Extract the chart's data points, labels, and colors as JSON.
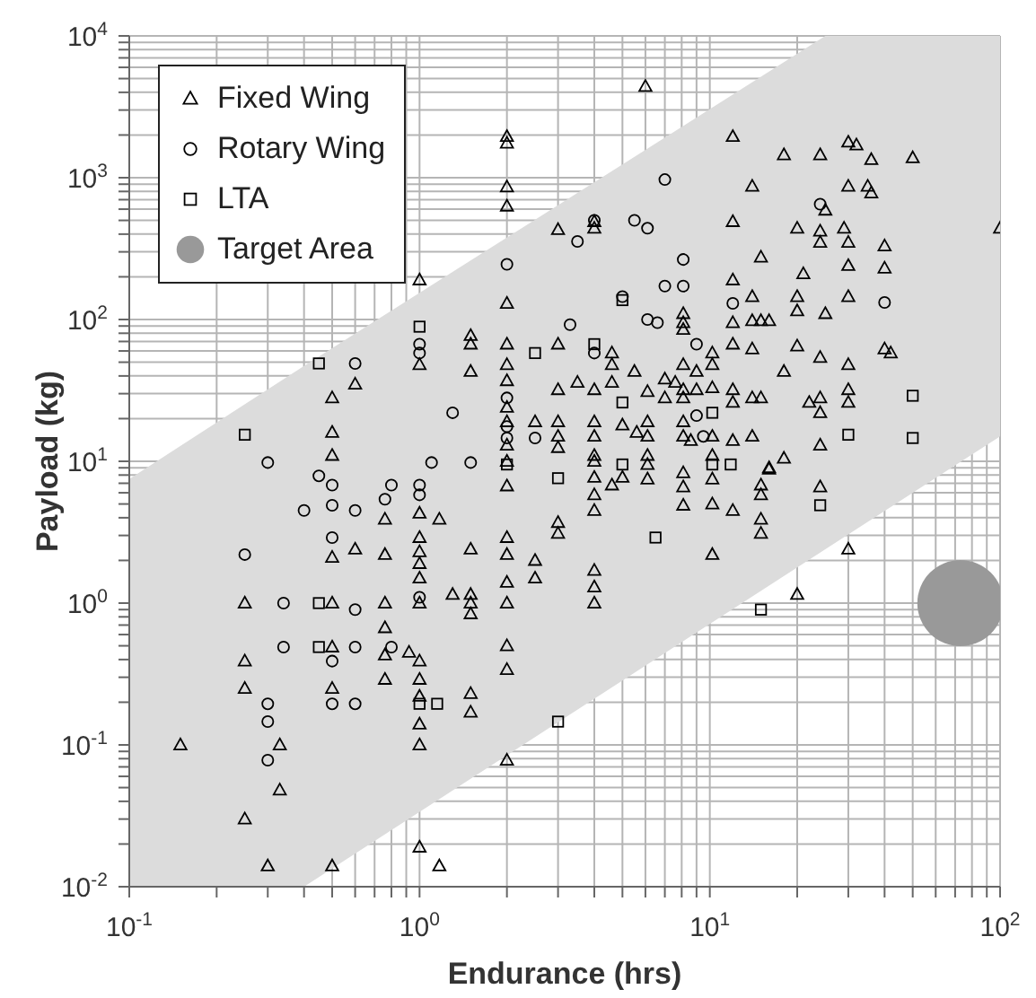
{
  "chart_data": {
    "type": "scatter",
    "xlabel": "Endurance (hrs)",
    "ylabel": "Payload (kg)",
    "log": "xy",
    "grid": true,
    "legend": "top left",
    "xlim": [
      0.1,
      100
    ],
    "xticks": [
      {
        "value": 0.1,
        "label": "10$^{-1}$"
      },
      {
        "value": 0.2,
        "label": null
      },
      {
        "value": 0.3,
        "label": null
      },
      {
        "value": 0.4,
        "label": null
      },
      {
        "value": 0.5,
        "label": null
      },
      {
        "value": 0.6,
        "label": null
      },
      {
        "value": 0.7,
        "label": null
      },
      {
        "value": 0.8,
        "label": null
      },
      {
        "value": 0.9,
        "label": null
      },
      {
        "value": 1,
        "label": "10$^{0}$"
      },
      {
        "value": 2,
        "label": null
      },
      {
        "value": 3,
        "label": null
      },
      {
        "value": 4,
        "label": null
      },
      {
        "value": 5,
        "label": null
      },
      {
        "value": 6,
        "label": null
      },
      {
        "value": 7,
        "label": null
      },
      {
        "value": 8,
        "label": null
      },
      {
        "value": 9,
        "label": null
      },
      {
        "value": 10,
        "label": "10$^{1}$"
      },
      {
        "value": 20,
        "label": null
      },
      {
        "value": 30,
        "label": null
      },
      {
        "value": 40,
        "label": null
      },
      {
        "value": 50,
        "label": null
      },
      {
        "value": 60,
        "label": null
      },
      {
        "value": 70,
        "label": null
      },
      {
        "value": 80,
        "label": null
      },
      {
        "value": 90,
        "label": null
      },
      {
        "value": 100,
        "label": "10$^{2}$"
      }
    ],
    "ylim": [
      0.01,
      10000
    ],
    "yticks": [
      {
        "value": 0.01,
        "label": "10$^{-2}$"
      },
      {
        "value": 0.02,
        "label": null
      },
      {
        "value": 0.03,
        "label": null
      },
      {
        "value": 0.04,
        "label": null
      },
      {
        "value": 0.05,
        "label": null
      },
      {
        "value": 0.06,
        "label": null
      },
      {
        "value": 0.07,
        "label": null
      },
      {
        "value": 0.08,
        "label": null
      },
      {
        "value": 0.09,
        "label": null
      },
      {
        "value": 0.1,
        "label": "10$^{-1}$"
      },
      {
        "value": 0.2,
        "label": null
      },
      {
        "value": 0.3,
        "label": null
      },
      {
        "value": 0.4,
        "label": null
      },
      {
        "value": 0.5,
        "label": null
      },
      {
        "value": 0.6,
        "label": null
      },
      {
        "value": 0.7,
        "label": null
      },
      {
        "value": 0.8,
        "label": null
      },
      {
        "value": 0.9,
        "label": null
      },
      {
        "value": 1,
        "label": "10$^{0}$"
      },
      {
        "value": 2,
        "label": null
      },
      {
        "value": 3,
        "label": null
      },
      {
        "value": 4,
        "label": null
      },
      {
        "value": 5,
        "label": null
      },
      {
        "value": 6,
        "label": null
      },
      {
        "value": 7,
        "label": null
      },
      {
        "value": 8,
        "label": null
      },
      {
        "value": 9,
        "label": null
      },
      {
        "value": 10,
        "label": "10$^{1}$"
      },
      {
        "value": 20,
        "label": null
      },
      {
        "value": 30,
        "label": null
      },
      {
        "value": 40,
        "label": null
      },
      {
        "value": 50,
        "label": null
      },
      {
        "value": 60,
        "label": null
      },
      {
        "value": 70,
        "label": null
      },
      {
        "value": 80,
        "label": null
      },
      {
        "value": 90,
        "label": null
      },
      {
        "value": 100,
        "label": "10$^{2}$"
      },
      {
        "value": 200,
        "label": null
      },
      {
        "value": 300,
        "label": null
      },
      {
        "value": 400,
        "label": null
      },
      {
        "value": 500,
        "label": null
      },
      {
        "value": 600,
        "label": null
      },
      {
        "value": 700,
        "label": null
      },
      {
        "value": 800,
        "label": null
      },
      {
        "value": 900,
        "label": null
      },
      {
        "value": 1000,
        "label": "10$^{3}$"
      },
      {
        "value": 2000,
        "label": null
      },
      {
        "value": 3000,
        "label": null
      },
      {
        "value": 4000,
        "label": null
      },
      {
        "value": 5000,
        "label": null
      },
      {
        "value": 6000,
        "label": null
      },
      {
        "value": 7000,
        "label": null
      },
      {
        "value": 8000,
        "label": null
      },
      {
        "value": 9000,
        "label": null
      },
      {
        "value": 10000,
        "label": "10$^{4}$"
      }
    ],
    "series": [
      {
        "type": "area",
        "color": "#dcdcdc",
        "x": [
          0.1,
          0.4,
          25,
          100
        ],
        "values": [
          null,
          null,
          null,
          null
        ],
        "lower": [
          0.01,
          0.01,
          2.4,
          15
        ],
        "upper": [
          7.5,
          47,
          10000,
          10000
        ]
      },
      {
        "name": "Fixed Wing",
        "color": "#000000",
        "marker": "triangle",
        "x": [
          0.15,
          0.25,
          0.25,
          0.25,
          0.25,
          0.33,
          0.33,
          0.3,
          0.5,
          0.5,
          0.5,
          0.5,
          0.5,
          0.5,
          0.5,
          0.5,
          0.6,
          0.6,
          0.76,
          0.76,
          0.76,
          0.76,
          0.76,
          0.76,
          0.92,
          1,
          1,
          1,
          1,
          1,
          1,
          1,
          1,
          1,
          1,
          1,
          1,
          1,
          1,
          1.17,
          1.17,
          1.3,
          1.5,
          1.5,
          1.5,
          1.5,
          1.5,
          1.5,
          1.5,
          1.5,
          1.5,
          2,
          2,
          2,
          2,
          2,
          2,
          2,
          2,
          2,
          2,
          2,
          2,
          2,
          2,
          2,
          2,
          2,
          2,
          2,
          2,
          2.5,
          2.5,
          2.5,
          3,
          3,
          3,
          3,
          3,
          3,
          3,
          3,
          3.5,
          4,
          4,
          4,
          4,
          4,
          4,
          4,
          4,
          4,
          4,
          4,
          4,
          4,
          4.6,
          4.6,
          4.6,
          4.6,
          5,
          5,
          5.5,
          5.6,
          6,
          6.1,
          6.1,
          6.1,
          6.1,
          6.1,
          6.1,
          7,
          7,
          7.6,
          8.1,
          8.1,
          8.1,
          8.1,
          8.1,
          8.1,
          8.1,
          8.1,
          8.1,
          8.1,
          8.1,
          8.6,
          9,
          9,
          10.2,
          10.2,
          10.2,
          10.2,
          10.2,
          10.2,
          10.2,
          10.2,
          12,
          12,
          12,
          12,
          12,
          12,
          12,
          12,
          12,
          14,
          14,
          14,
          14,
          14,
          14,
          15,
          15,
          15,
          15,
          15,
          15,
          15,
          16,
          16,
          16,
          18,
          18,
          18,
          20,
          20,
          20,
          20,
          20,
          21,
          22,
          24,
          24,
          24,
          24,
          24,
          24,
          24,
          24,
          25,
          25,
          29,
          30,
          30,
          30,
          30,
          30,
          30,
          30,
          30,
          30,
          32,
          35,
          36,
          36,
          40,
          40,
          40,
          42,
          50,
          100
        ],
        "values": [
          0.1,
          1,
          0.39,
          0.25,
          0.03,
          0.1,
          0.048,
          0.014,
          0.014,
          11,
          2.1,
          1,
          0.49,
          0.25,
          28,
          16,
          2.4,
          35,
          3.9,
          2.2,
          1,
          0.67,
          0.43,
          0.29,
          0.45,
          190,
          48,
          4.3,
          2.9,
          2.3,
          1.9,
          1.5,
          1,
          0.39,
          0.29,
          0.22,
          0.14,
          0.1,
          0.019,
          3.9,
          0.014,
          1.15,
          77,
          67,
          43,
          2.4,
          1.15,
          1,
          0.84,
          0.23,
          0.17,
          1950,
          1750,
          860,
          630,
          130,
          67,
          48,
          37,
          24,
          19,
          13,
          10,
          6.7,
          2.9,
          2.2,
          1.4,
          1,
          0.5,
          0.34,
          0.078,
          2,
          1.5,
          19,
          430,
          67,
          32,
          19,
          15,
          12.5,
          3.7,
          3.1,
          36,
          490,
          440,
          32,
          19,
          15,
          11,
          10,
          7.7,
          5.8,
          4.5,
          1.7,
          1.3,
          1,
          58,
          48,
          36,
          6.8,
          18,
          7.7,
          43,
          16,
          4400,
          31,
          19,
          15,
          11,
          9.5,
          7.5,
          38,
          28,
          36,
          110,
          95,
          85,
          48,
          32,
          28,
          19,
          15,
          8.3,
          6.6,
          4.9,
          14,
          43,
          32,
          58,
          48,
          33,
          15,
          11,
          7.5,
          5,
          2.2,
          1950,
          490,
          190,
          95,
          67,
          32,
          26,
          14,
          4.5,
          870,
          145,
          98,
          62,
          28,
          15,
          275,
          98,
          28,
          6.8,
          5.8,
          3.9,
          3.1,
          98,
          9,
          8.8,
          1450,
          43,
          10.5,
          440,
          145,
          115,
          65,
          1.15,
          210,
          26,
          1450,
          420,
          350,
          54,
          28,
          22,
          13,
          6.6,
          590,
          110,
          440,
          1780,
          870,
          350,
          240,
          145,
          48,
          32,
          26,
          2.4,
          1700,
          870,
          1340,
          780,
          330,
          230,
          62,
          58,
          1380,
          440
        ]
      },
      {
        "name": "Rotary Wing",
        "color": "#000000",
        "marker": "circle",
        "x": [
          0.6,
          2,
          1,
          1,
          1.3,
          2,
          2,
          2,
          2.5,
          3.3,
          0.3,
          1.1,
          1.5,
          7,
          24,
          4,
          5.5,
          6.1,
          3.5,
          8.1,
          7,
          8.1,
          5,
          12,
          40,
          6.1,
          6.6,
          9,
          4,
          9,
          9.5,
          0.45,
          0.5,
          0.8,
          0.76,
          0.4,
          0.5,
          0.6,
          0.5,
          0.25,
          0.34,
          0.6,
          1,
          0.34,
          0.5,
          0.6,
          0.8,
          0.3,
          0.5,
          0.6,
          0.3,
          0.3,
          1,
          1
        ],
        "values": [
          49,
          245,
          67,
          58,
          22,
          28,
          17.6,
          14.6,
          14.6,
          92,
          9.8,
          9.8,
          9.8,
          970,
          650,
          500,
          500,
          440,
          355,
          265,
          172,
          172,
          145,
          130,
          132,
          100,
          95,
          67,
          58,
          21,
          15,
          7.9,
          6.8,
          6.8,
          5.4,
          4.5,
          4.9,
          4.5,
          2.9,
          2.2,
          1,
          0.9,
          1.1,
          0.49,
          0.39,
          0.49,
          0.49,
          0.195,
          0.195,
          0.195,
          0.146,
          0.078,
          6.8,
          5.8
        ]
      },
      {
        "name": "LTA",
        "color": "#000000",
        "marker": "square",
        "x": [
          0.45,
          0.25,
          1,
          2.5,
          5,
          4,
          50,
          30,
          50,
          10.2,
          11.8,
          10.2,
          5,
          0.45,
          0.45,
          1,
          1.15,
          3,
          3,
          2,
          24,
          6.5,
          15,
          5
        ],
        "values": [
          49,
          15.4,
          89,
          58,
          137,
          67,
          29,
          15.4,
          14.6,
          22,
          9.5,
          9.5,
          26,
          1,
          0.49,
          0.195,
          0.195,
          7.6,
          0.146,
          9.5,
          4.9,
          2.9,
          0.9,
          9.5
        ]
      },
      {
        "name": "Target Area",
        "type": "bubble",
        "color": "#999999",
        "marker": "circle",
        "x": [
          73
        ],
        "values": [
          1
        ],
        "sizes": [
          1
        ]
      }
    ]
  }
}
